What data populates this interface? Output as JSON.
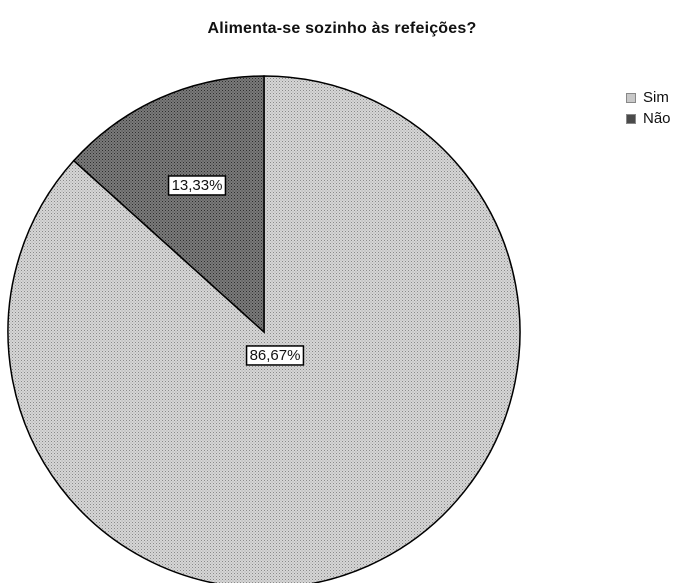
{
  "chart_data": {
    "type": "pie",
    "title": "Alimenta-se sozinho às refeições?",
    "categories": [
      "Sim",
      "Não"
    ],
    "values": [
      86.67,
      13.33
    ],
    "data_labels": [
      "86,67%",
      "13,33%"
    ],
    "colors": [
      "#c8c8c8",
      "#6a6a6a"
    ],
    "legend_position": "top-right",
    "start_angle": "12 o'clock",
    "direction": "clockwise"
  }
}
